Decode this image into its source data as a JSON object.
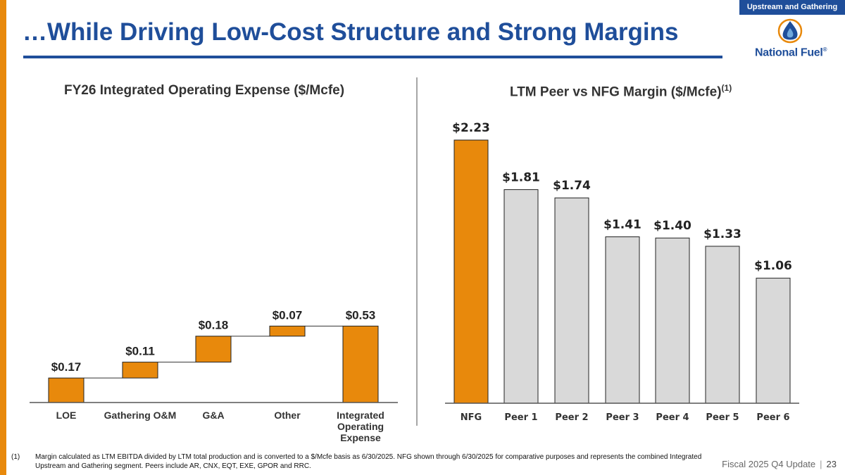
{
  "segment_tag": "Upstream and Gathering",
  "page_title": "…While Driving Low-Cost Structure and Strong Margins",
  "logo_text": "National Fuel",
  "logo_reg": "®",
  "colors": {
    "accent": "#E8890C",
    "brand": "#1F4E9A",
    "gray_bar": "#D9D9D9"
  },
  "chart_data": [
    {
      "type": "waterfall",
      "title": "FY26 Integrated Operating Expense ($/Mcfe)",
      "categories": [
        "LOE",
        "Gathering O&M",
        "G&A",
        "Other",
        "Integrated Operating Expense"
      ],
      "values": [
        0.17,
        0.11,
        0.18,
        0.07,
        0.53
      ],
      "labels": [
        "$0.17",
        "$0.11",
        "$0.18",
        "$0.07",
        "$0.53"
      ],
      "total_index": 4,
      "ylim": [
        0,
        0.6
      ]
    },
    {
      "type": "bar",
      "title": "LTM Peer vs NFG Margin ($/Mcfe)",
      "title_superscript": "(1)",
      "categories": [
        "NFG",
        "Peer 1",
        "Peer 2",
        "Peer 3",
        "Peer 4",
        "Peer 5",
        "Peer 6"
      ],
      "values": [
        2.23,
        1.81,
        1.74,
        1.41,
        1.4,
        1.33,
        1.06
      ],
      "labels": [
        "$2.23",
        "$1.81",
        "$1.74",
        "$1.41",
        "$1.40",
        "$1.33",
        "$1.06"
      ],
      "highlight_index": 0,
      "ylim": [
        0,
        2.23
      ]
    }
  ],
  "footnote": {
    "marker": "(1)",
    "text": "Margin calculated as LTM EBITDA divided by LTM total production and is converted to a $/Mcfe basis as 6/30/2025.  NFG shown through 6/30/2025 for comparative purposes and represents the combined Integrated Upstream and Gathering segment. Peers include AR, CNX, EQT, EXE, GPOR and RRC."
  },
  "footer": {
    "update_label": "Fiscal 2025 Q4 Update",
    "separator": "|",
    "page_number": "23"
  }
}
